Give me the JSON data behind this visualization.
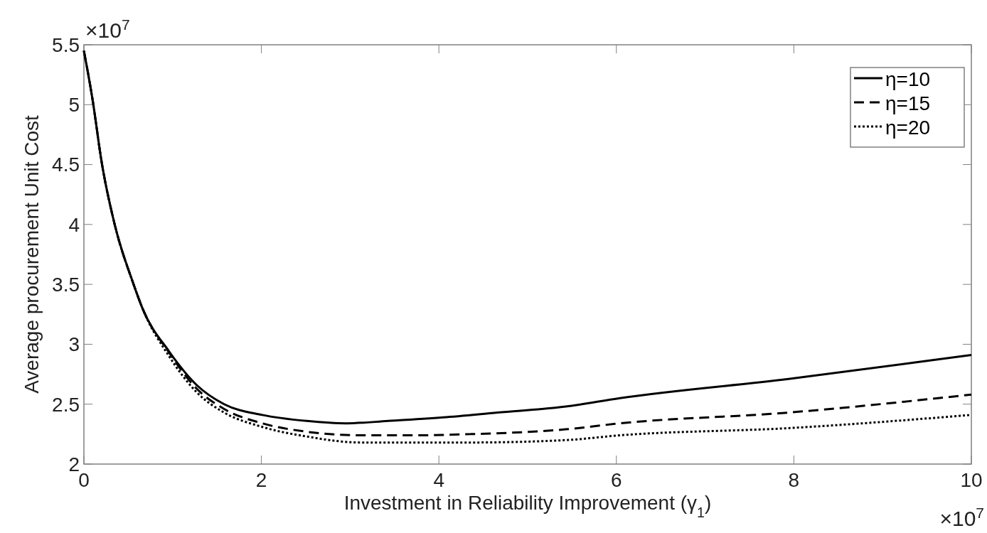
{
  "chart_data": {
    "type": "line",
    "xlabel": "Investment in Reliability Improvement (γ$_{1}$)",
    "ylabel": "Average procurement Unit Cost",
    "annotations": [
      "×10$^{7}$",
      "×10$^{7}$"
    ],
    "xlim": [
      0,
      10
    ],
    "xticks": [
      0,
      2,
      4,
      6,
      8,
      10
    ],
    "ylim": [
      2,
      5.5
    ],
    "yticks": [
      2,
      2.5,
      3,
      3.5,
      4,
      4.5,
      5,
      5.5
    ],
    "grid": false,
    "legend": "top right",
    "series": [
      {
        "name": "η=10",
        "color": "#000000",
        "line_style": "solid",
        "x": [
          0,
          0.1,
          0.2,
          0.34,
          0.56,
          0.66,
          0.96,
          1.27,
          1.58,
          2.01,
          2.51,
          2.96,
          3.43,
          4.05,
          4.66,
          5.43,
          6.04,
          7.94,
          10
        ],
        "values": [
          5.45,
          5.03,
          4.52,
          4.02,
          3.5,
          3.3,
          2.94,
          2.66,
          2.5,
          2.41,
          2.36,
          2.34,
          2.36,
          2.39,
          2.43,
          2.48,
          2.55,
          2.71,
          2.91
        ]
      },
      {
        "name": "η=15",
        "color": "#000000",
        "line_style": "dashed",
        "x": [
          0,
          0.1,
          0.2,
          0.34,
          0.56,
          0.66,
          0.96,
          1.27,
          1.58,
          2.01,
          2.51,
          3.12,
          3.74,
          4.36,
          5.43,
          6.04,
          7.94,
          10
        ],
        "values": [
          5.45,
          5.03,
          4.52,
          4.02,
          3.5,
          3.3,
          2.93,
          2.63,
          2.46,
          2.34,
          2.27,
          2.24,
          2.24,
          2.25,
          2.29,
          2.34,
          2.43,
          2.58
        ]
      },
      {
        "name": "η=20",
        "color": "#000000",
        "line_style": "dotted",
        "x": [
          0,
          0.1,
          0.2,
          0.34,
          0.56,
          0.66,
          0.96,
          1.27,
          1.58,
          2.01,
          2.51,
          3.12,
          3.74,
          4.36,
          5.43,
          6.04,
          7.94,
          10
        ],
        "values": [
          5.45,
          5.03,
          4.52,
          4.02,
          3.5,
          3.3,
          2.9,
          2.6,
          2.43,
          2.31,
          2.23,
          2.18,
          2.18,
          2.18,
          2.2,
          2.24,
          2.3,
          2.41
        ]
      }
    ]
  }
}
